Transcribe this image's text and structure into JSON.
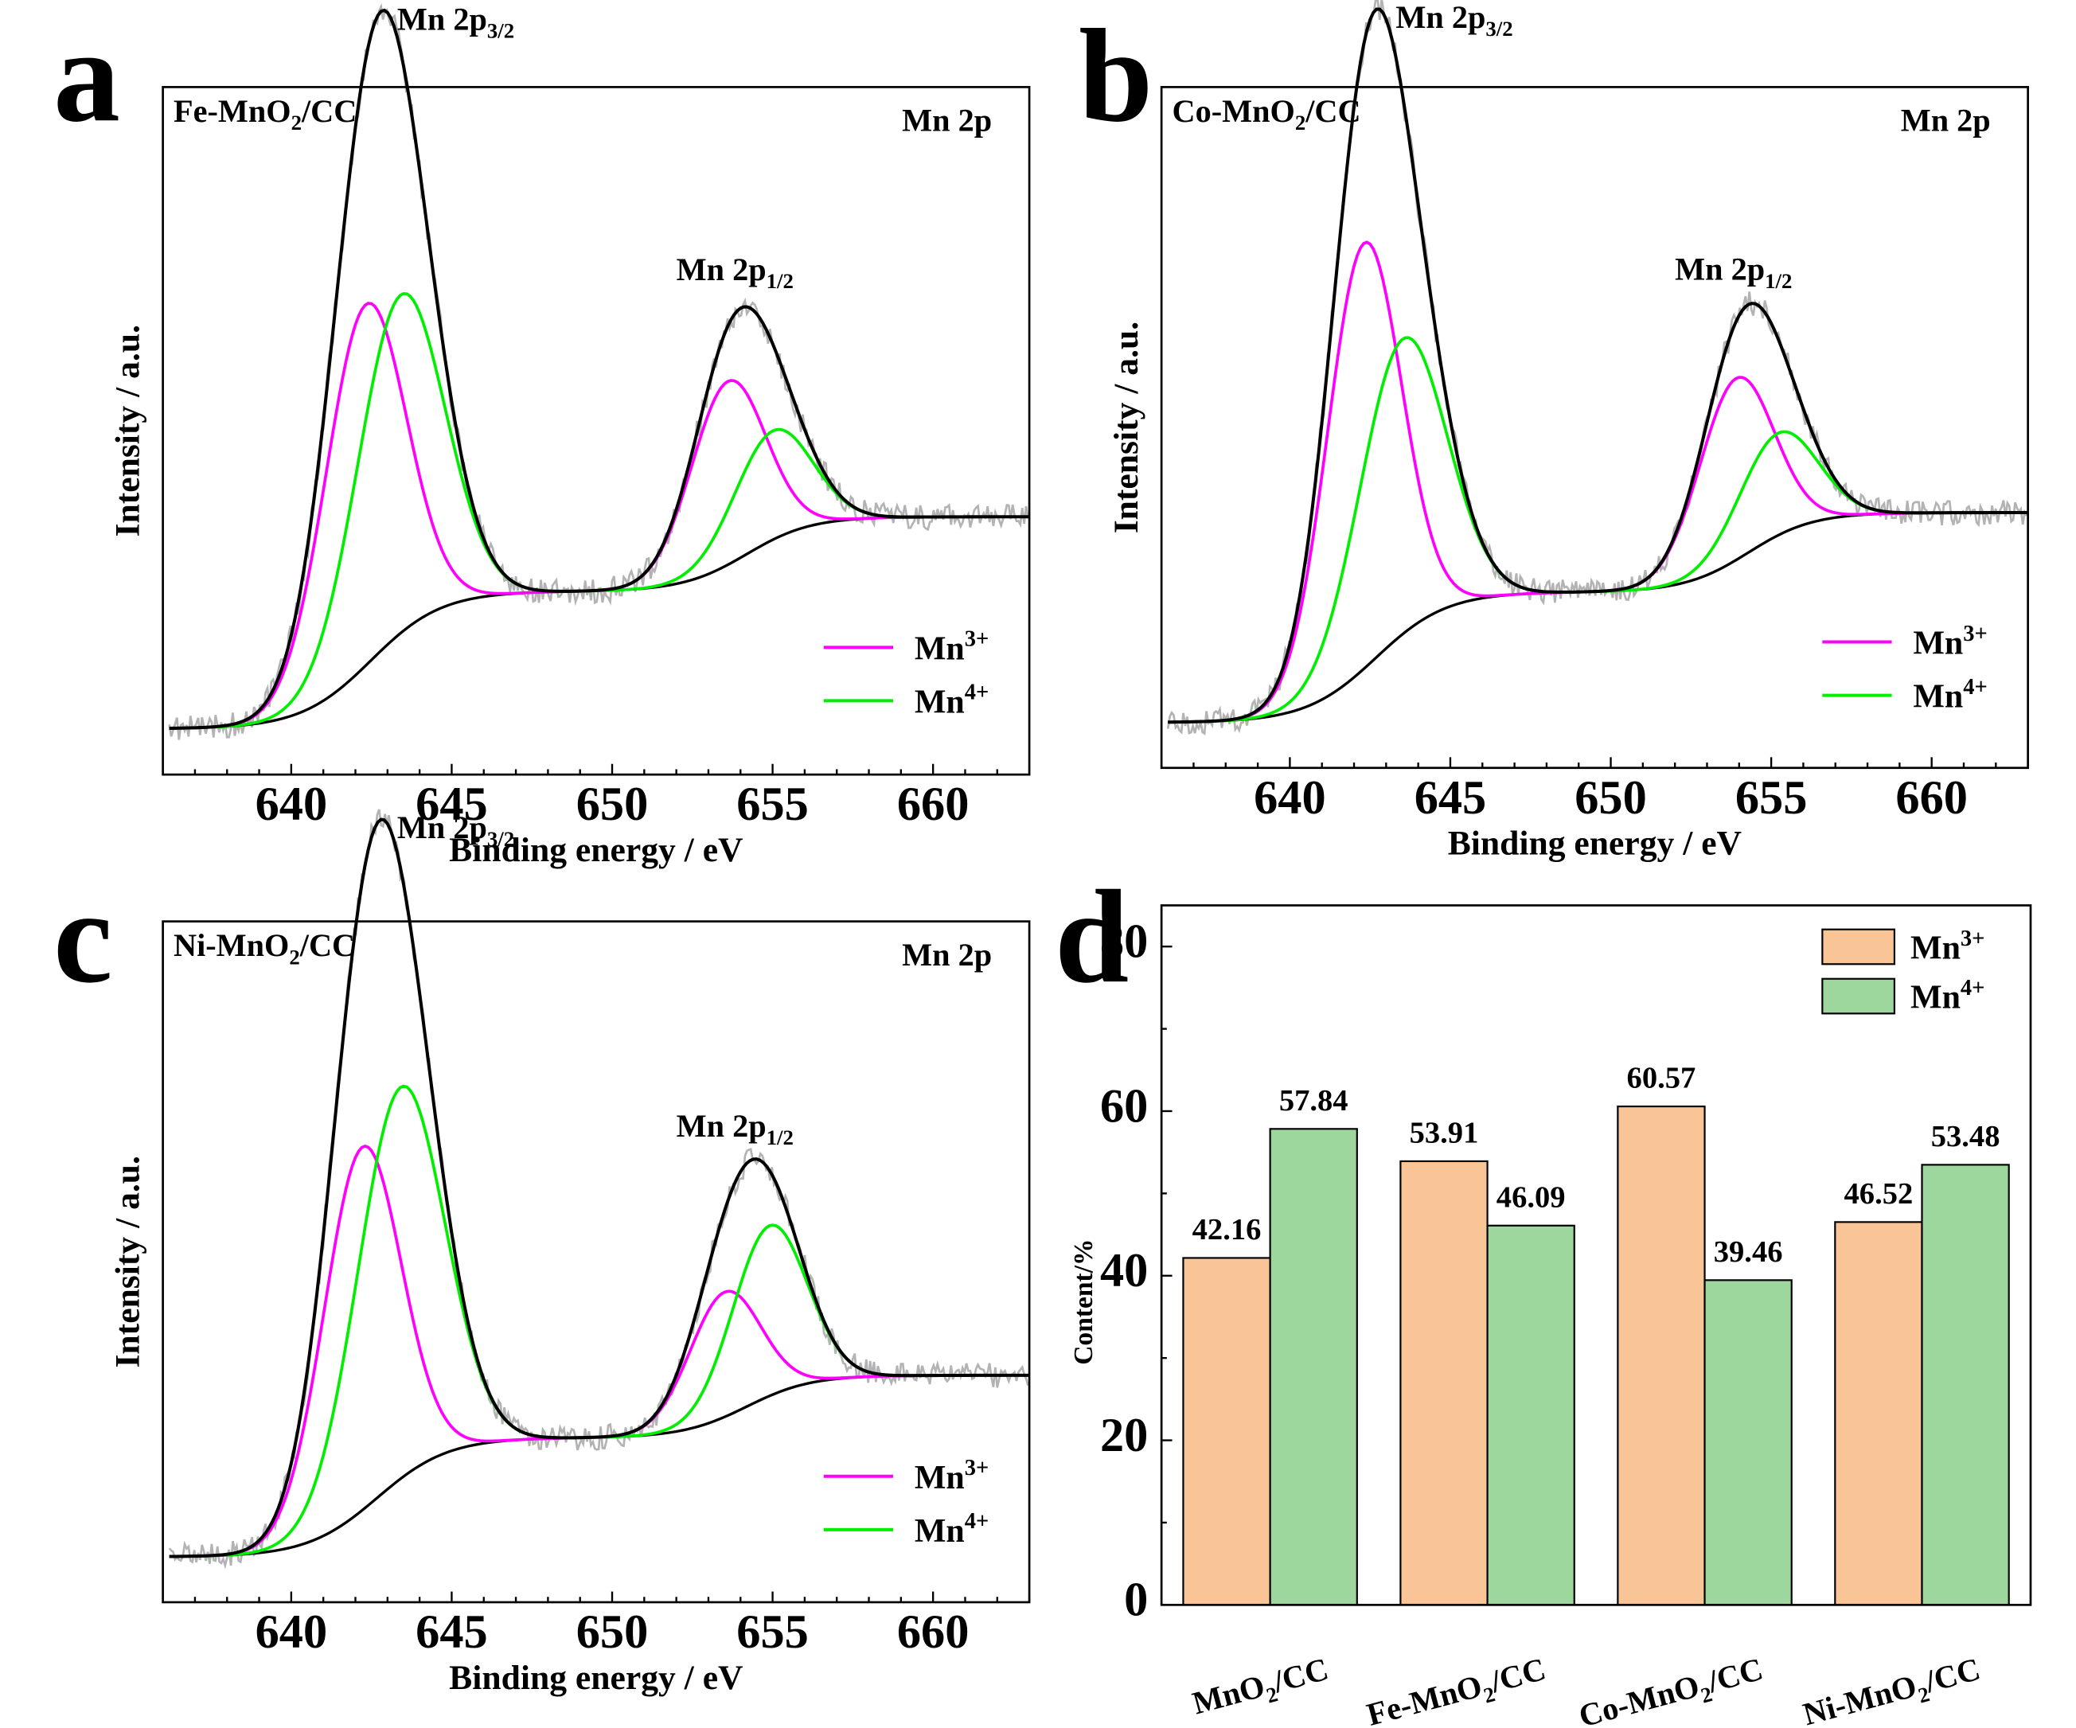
{
  "figure": {
    "letters": [
      "a",
      "b",
      "c",
      "d"
    ]
  },
  "colors": {
    "raw": "#b3b3b3",
    "envelope": "#000000",
    "background": "#000000",
    "mn3": "#ff00ff",
    "mn4": "#00ee00",
    "bar_mn3": "#f9c597",
    "bar_mn4": "#9dd79d"
  },
  "chart_data": [
    {
      "type": "line",
      "panel": "a",
      "sample_pre": "Fe-MnO",
      "sample_sub": "2",
      "sample_post": "/CC",
      "region": "Mn 2p",
      "peak1": {
        "base": "Mn 2p",
        "sub": "3/2"
      },
      "peak2": {
        "base": "Mn 2p",
        "sub": "1/2"
      },
      "xlabel": "Binding energy / eV",
      "ylabel": "Intensity / a.u.",
      "xlim": [
        636,
        663
      ],
      "xticks": [
        640,
        645,
        650,
        655,
        660
      ],
      "legend": [
        {
          "base": "Mn",
          "sup": "3+"
        },
        {
          "base": "Mn",
          "sup": "4+"
        }
      ],
      "legend_position": "bottom-right",
      "background": {
        "low": 0.0,
        "mid": 0.24,
        "high": 0.37,
        "step1_center": 642.5,
        "step1_width": 1.1,
        "step2_center": 654.2,
        "step2_width": 1.0
      },
      "components": {
        "mn3": [
          {
            "center": 642.3,
            "height": 0.63,
            "sigma": 1.25
          },
          {
            "center": 653.6,
            "height": 0.32,
            "sigma": 1.15
          }
        ],
        "mn4": [
          {
            "center": 643.4,
            "height": 0.59,
            "sigma": 1.35
          },
          {
            "center": 655.0,
            "height": 0.19,
            "sigma": 1.2
          }
        ]
      },
      "ylim": [
        -0.08,
        1.12
      ],
      "noise": 0.022
    },
    {
      "type": "line",
      "panel": "b",
      "sample_pre": "Co-MnO",
      "sample_sub": "2",
      "sample_post": "/CC",
      "region": "Mn 2p",
      "peak1": {
        "base": "Mn 2p",
        "sub": "3/2"
      },
      "peak2": {
        "base": "Mn 2p",
        "sub": "1/2"
      },
      "xlabel": "Binding energy / eV",
      "ylabel": "Intensity / a.u.",
      "xlim": [
        636,
        663
      ],
      "xticks": [
        640,
        645,
        650,
        655,
        660
      ],
      "legend": [
        {
          "base": "Mn",
          "sup": "3+"
        },
        {
          "base": "Mn",
          "sup": "4+"
        }
      ],
      "legend_position": "bottom-right",
      "background": {
        "low": 0.0,
        "mid": 0.23,
        "high": 0.37,
        "step1_center": 642.7,
        "step1_width": 1.1,
        "step2_center": 654.3,
        "step2_width": 1.0
      },
      "components": {
        "mn3": [
          {
            "center": 642.3,
            "height": 0.75,
            "sigma": 1.15
          },
          {
            "center": 653.9,
            "height": 0.32,
            "sigma": 1.15
          }
        ],
        "mn4": [
          {
            "center": 643.5,
            "height": 0.52,
            "sigma": 1.35
          },
          {
            "center": 655.2,
            "height": 0.18,
            "sigma": 1.2
          }
        ]
      },
      "ylim": [
        -0.08,
        1.12
      ],
      "noise": 0.022
    },
    {
      "type": "line",
      "panel": "c",
      "sample_pre": "Ni-MnO",
      "sample_sub": "2",
      "sample_post": "/CC",
      "region": "Mn 2p",
      "peak1": {
        "base": "Mn 2p",
        "sub": "3/2"
      },
      "peak2": {
        "base": "Mn 2p",
        "sub": "1/2"
      },
      "xlabel": "Binding energy / eV",
      "ylabel": "Intensity / a.u.",
      "xlim": [
        636,
        663
      ],
      "xticks": [
        640,
        645,
        650,
        655,
        660
      ],
      "legend": [
        {
          "base": "Mn",
          "sup": "3+"
        },
        {
          "base": "Mn",
          "sup": "4+"
        }
      ],
      "legend_position": "bottom-right",
      "background": {
        "low": 0.0,
        "mid": 0.21,
        "high": 0.32,
        "step1_center": 642.7,
        "step1_width": 1.1,
        "step2_center": 654.2,
        "step2_width": 1.0
      },
      "components": {
        "mn3": [
          {
            "center": 642.2,
            "height": 0.64,
            "sigma": 1.2
          },
          {
            "center": 653.5,
            "height": 0.22,
            "sigma": 1.1
          }
        ],
        "mn4": [
          {
            "center": 643.4,
            "height": 0.69,
            "sigma": 1.35
          },
          {
            "center": 654.9,
            "height": 0.3,
            "sigma": 1.15
          }
        ]
      },
      "ylim": [
        -0.08,
        1.12
      ],
      "noise": 0.022
    },
    {
      "type": "bar",
      "panel": "d",
      "categories": [
        {
          "pre": "MnO",
          "sub": "2",
          "post": "/CC"
        },
        {
          "pre": "Fe-MnO",
          "sub": "2",
          "post": "/CC"
        },
        {
          "pre": "Co-MnO",
          "sub": "2",
          "post": "/CC"
        },
        {
          "pre": "Ni-MnO",
          "sub": "2",
          "post": "/CC"
        }
      ],
      "series": [
        {
          "name": {
            "base": "Mn",
            "sup": "3+"
          },
          "values": [
            42.16,
            53.91,
            60.57,
            46.52
          ],
          "labels": [
            "42.16",
            "53.91",
            "60.57",
            "46.52"
          ]
        },
        {
          "name": {
            "base": "Mn",
            "sup": "4+"
          },
          "values": [
            57.84,
            46.09,
            39.46,
            53.48
          ],
          "labels": [
            "57.84",
            "46.09",
            "39.46",
            "53.48"
          ]
        }
      ],
      "ylabel": "Content/%",
      "ylim": [
        0,
        85
      ],
      "yticks": [
        0,
        20,
        40,
        60,
        80
      ],
      "legend_position": "top-right"
    }
  ]
}
